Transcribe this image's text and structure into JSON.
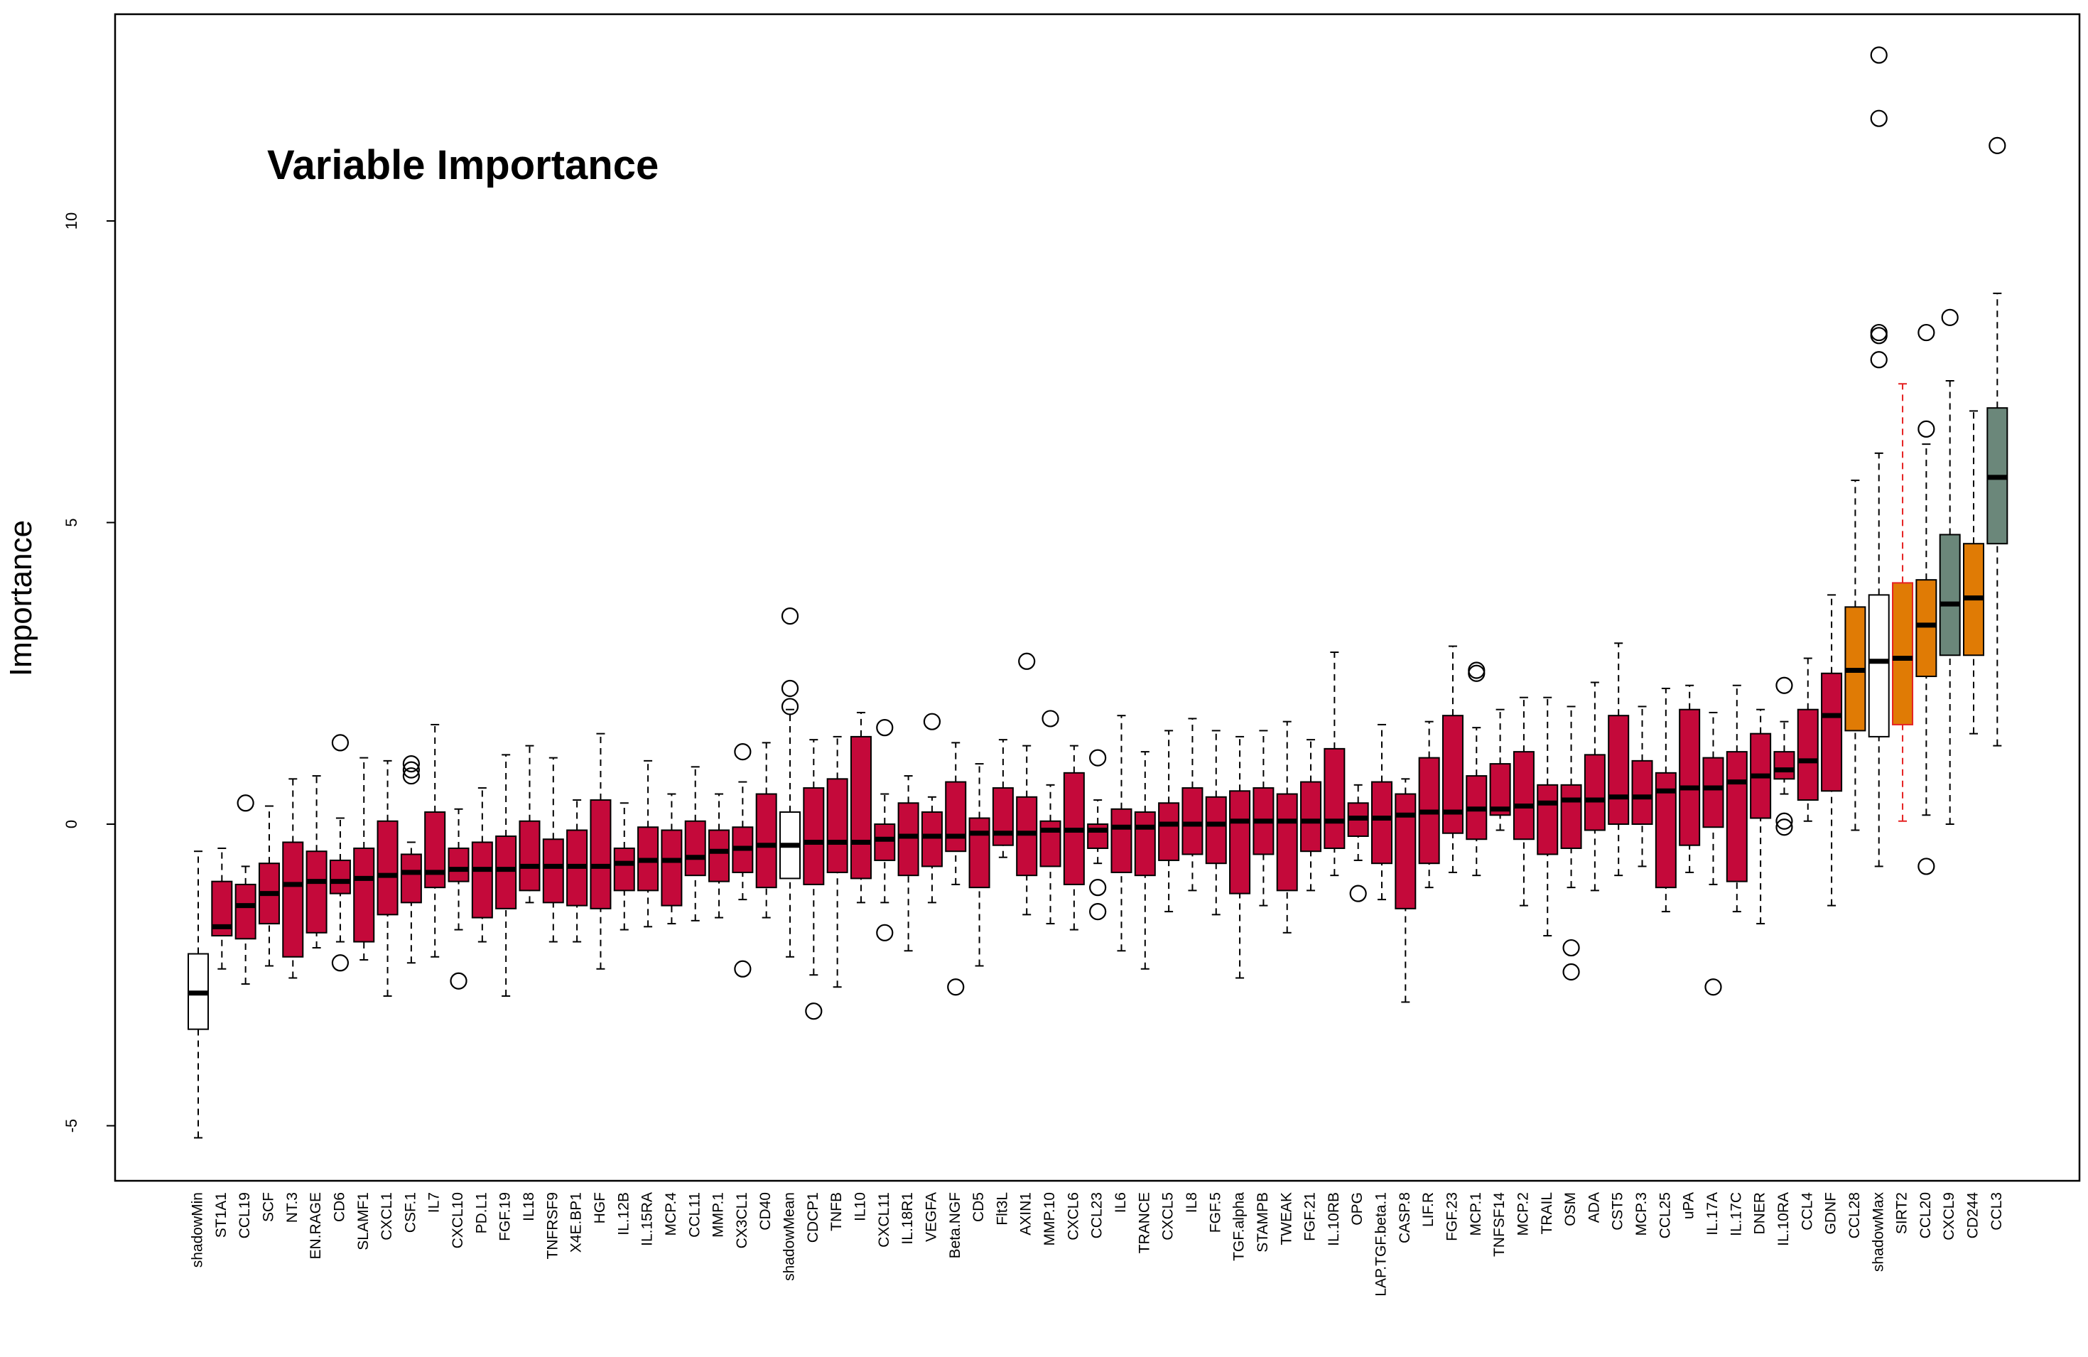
{
  "chart_data": {
    "type": "boxplot",
    "title": "Variable Importance",
    "xlabel": "",
    "ylabel": "Importance",
    "ylim": [
      -5.9,
      13.5
    ],
    "yticks": [
      -5,
      0,
      5,
      10
    ],
    "grid": false,
    "legend": "none",
    "colors": {
      "rejected": "#c4093a",
      "tentative": "#e07b05",
      "confirmed": "#6b877a",
      "shadow": "#ffffff",
      "highlight_label": "#e52222",
      "highlight_whisker": "#e52222"
    },
    "categories": [
      "shadowMin",
      "ST1A1",
      "CCL19",
      "SCF",
      "NT.3",
      "EN.RAGE",
      "CD6",
      "SLAMF1",
      "CXCL1",
      "CSF.1",
      "IL7",
      "CXCL10",
      "PD.L1",
      "FGF.19",
      "IL18",
      "TNFRSF9",
      "X4E.BP1",
      "HGF",
      "IL.12B",
      "IL.15RA",
      "MCP.4",
      "CCL11",
      "MMP.1",
      "CX3CL1",
      "CD40",
      "shadowMean",
      "CDCP1",
      "TNFB",
      "IL10",
      "CXCL11",
      "IL.18R1",
      "VEGFA",
      "Beta.NGF",
      "CD5",
      "Flt3L",
      "AXIN1",
      "MMP.10",
      "CXCL6",
      "CCL23",
      "IL6",
      "TRANCE",
      "CXCL5",
      "IL8",
      "FGF.5",
      "TGF.alpha",
      "STAMPB",
      "TWEAK",
      "FGF.21",
      "IL.10RB",
      "OPG",
      "LAP.TGF.beta.1",
      "CASP.8",
      "LIF.R",
      "FGF.23",
      "MCP.1",
      "TNFSF14",
      "MCP.2",
      "TRAIL",
      "OSM",
      "ADA",
      "CST5",
      "MCP.3",
      "CCL25",
      "uPA",
      "IL.17A",
      "IL.17C",
      "DNER",
      "IL.10RA",
      "CCL4",
      "GDNF",
      "CCL28",
      "shadowMax",
      "SIRT2",
      "CCL20",
      "CXCL9",
      "CD244",
      "CCL3"
    ],
    "groups": [
      "shadow",
      "rejected",
      "rejected",
      "rejected",
      "rejected",
      "rejected",
      "rejected",
      "rejected",
      "rejected",
      "rejected",
      "rejected",
      "rejected",
      "rejected",
      "rejected",
      "rejected",
      "rejected",
      "rejected",
      "rejected",
      "rejected",
      "rejected",
      "rejected",
      "rejected",
      "rejected",
      "rejected",
      "rejected",
      "shadow",
      "rejected",
      "rejected",
      "rejected",
      "rejected",
      "rejected",
      "rejected",
      "rejected",
      "rejected",
      "rejected",
      "rejected",
      "rejected",
      "rejected",
      "rejected",
      "rejected",
      "rejected",
      "rejected",
      "rejected",
      "rejected",
      "rejected",
      "rejected",
      "rejected",
      "rejected",
      "rejected",
      "rejected",
      "rejected",
      "rejected",
      "rejected",
      "rejected",
      "rejected",
      "rejected",
      "rejected",
      "rejected",
      "rejected",
      "rejected",
      "rejected",
      "rejected",
      "rejected",
      "rejected",
      "rejected",
      "rejected",
      "rejected",
      "rejected",
      "rejected",
      "rejected",
      "tentative",
      "shadow",
      "tentative",
      "tentative",
      "confirmed",
      "tentative",
      "confirmed"
    ],
    "highlight": "SIRT2",
    "boxes": [
      {
        "min": -5.2,
        "q1": -3.4,
        "median": -2.8,
        "q3": -2.15,
        "max": -0.45,
        "outliers": []
      },
      {
        "min": -2.4,
        "q1": -1.85,
        "median": -1.7,
        "q3": -0.95,
        "max": -0.4,
        "outliers": []
      },
      {
        "min": -2.65,
        "q1": -1.9,
        "median": -1.35,
        "q3": -1.0,
        "max": -0.7,
        "outliers": [
          0.35
        ]
      },
      {
        "min": -2.35,
        "q1": -1.65,
        "median": -1.15,
        "q3": -0.65,
        "max": 0.3,
        "outliers": []
      },
      {
        "min": -2.55,
        "q1": -2.2,
        "median": -1.0,
        "q3": -0.3,
        "max": 0.75,
        "outliers": []
      },
      {
        "min": -2.05,
        "q1": -1.8,
        "median": -0.95,
        "q3": -0.45,
        "max": 0.8,
        "outliers": []
      },
      {
        "min": -1.95,
        "q1": -1.15,
        "median": -0.95,
        "q3": -0.6,
        "max": 0.1,
        "outliers": [
          -2.3,
          1.35
        ]
      },
      {
        "min": -2.25,
        "q1": -1.95,
        "median": -0.9,
        "q3": -0.4,
        "max": 1.1,
        "outliers": []
      },
      {
        "min": -2.85,
        "q1": -1.5,
        "median": -0.85,
        "q3": 0.05,
        "max": 1.05,
        "outliers": []
      },
      {
        "min": -2.3,
        "q1": -1.3,
        "median": -0.8,
        "q3": -0.5,
        "max": -0.3,
        "outliers": [
          0.8,
          0.9,
          1.0
        ]
      },
      {
        "min": -2.2,
        "q1": -1.05,
        "median": -0.8,
        "q3": 0.2,
        "max": 1.65,
        "outliers": []
      },
      {
        "min": -1.75,
        "q1": -0.95,
        "median": -0.75,
        "q3": -0.4,
        "max": 0.25,
        "outliers": [
          -2.6
        ]
      },
      {
        "min": -1.95,
        "q1": -1.55,
        "median": -0.75,
        "q3": -0.3,
        "max": 0.6,
        "outliers": []
      },
      {
        "min": -2.85,
        "q1": -1.4,
        "median": -0.75,
        "q3": -0.2,
        "max": 1.15,
        "outliers": []
      },
      {
        "min": -1.3,
        "q1": -1.1,
        "median": -0.7,
        "q3": 0.05,
        "max": 1.3,
        "outliers": []
      },
      {
        "min": -1.95,
        "q1": -1.3,
        "median": -0.7,
        "q3": -0.25,
        "max": 1.1,
        "outliers": []
      },
      {
        "min": -1.95,
        "q1": -1.35,
        "median": -0.7,
        "q3": -0.1,
        "max": 0.4,
        "outliers": []
      },
      {
        "min": -2.4,
        "q1": -1.4,
        "median": -0.7,
        "q3": 0.4,
        "max": 1.5,
        "outliers": []
      },
      {
        "min": -1.75,
        "q1": -1.1,
        "median": -0.65,
        "q3": -0.4,
        "max": 0.35,
        "outliers": []
      },
      {
        "min": -1.7,
        "q1": -1.1,
        "median": -0.6,
        "q3": -0.05,
        "max": 1.05,
        "outliers": []
      },
      {
        "min": -1.65,
        "q1": -1.35,
        "median": -0.6,
        "q3": -0.1,
        "max": 0.5,
        "outliers": []
      },
      {
        "min": -1.6,
        "q1": -0.85,
        "median": -0.55,
        "q3": 0.05,
        "max": 0.95,
        "outliers": []
      },
      {
        "min": -1.55,
        "q1": -0.95,
        "median": -0.45,
        "q3": -0.1,
        "max": 0.5,
        "outliers": []
      },
      {
        "min": -1.25,
        "q1": -0.8,
        "median": -0.4,
        "q3": -0.05,
        "max": 0.7,
        "outliers": [
          -2.4,
          1.2
        ]
      },
      {
        "min": -1.55,
        "q1": -1.05,
        "median": -0.35,
        "q3": 0.5,
        "max": 1.35,
        "outliers": []
      },
      {
        "min": -2.2,
        "q1": -0.9,
        "median": -0.35,
        "q3": 0.2,
        "max": 1.9,
        "outliers": [
          1.95,
          2.25,
          3.45
        ]
      },
      {
        "min": -2.5,
        "q1": -1.0,
        "median": -0.3,
        "q3": 0.6,
        "max": 1.4,
        "outliers": [
          -3.1
        ]
      },
      {
        "min": -2.7,
        "q1": -0.8,
        "median": -0.3,
        "q3": 0.75,
        "max": 1.45,
        "outliers": []
      },
      {
        "min": -1.3,
        "q1": -0.9,
        "median": -0.3,
        "q3": 1.45,
        "max": 1.85,
        "outliers": []
      },
      {
        "min": -1.3,
        "q1": -0.6,
        "median": -0.25,
        "q3": 0.0,
        "max": 0.5,
        "outliers": [
          -1.8,
          1.6
        ]
      },
      {
        "min": -2.1,
        "q1": -0.85,
        "median": -0.2,
        "q3": 0.35,
        "max": 0.8,
        "outliers": []
      },
      {
        "min": -1.3,
        "q1": -0.7,
        "median": -0.2,
        "q3": 0.2,
        "max": 0.45,
        "outliers": [
          1.7
        ]
      },
      {
        "min": -1.0,
        "q1": -0.45,
        "median": -0.2,
        "q3": 0.7,
        "max": 1.35,
        "outliers": [
          -2.7
        ]
      },
      {
        "min": -2.35,
        "q1": -1.05,
        "median": -0.15,
        "q3": 0.1,
        "max": 1.0,
        "outliers": []
      },
      {
        "min": -0.55,
        "q1": -0.35,
        "median": -0.15,
        "q3": 0.6,
        "max": 1.4,
        "outliers": []
      },
      {
        "min": -1.5,
        "q1": -0.85,
        "median": -0.15,
        "q3": 0.45,
        "max": 1.3,
        "outliers": [
          2.7
        ]
      },
      {
        "min": -1.65,
        "q1": -0.7,
        "median": -0.1,
        "q3": 0.05,
        "max": 0.65,
        "outliers": [
          1.75
        ]
      },
      {
        "min": -1.75,
        "q1": -1.0,
        "median": -0.1,
        "q3": 0.85,
        "max": 1.3,
        "outliers": []
      },
      {
        "min": -0.65,
        "q1": -0.4,
        "median": -0.1,
        "q3": 0.0,
        "max": 0.4,
        "outliers": [
          -1.05,
          -1.45,
          1.1
        ]
      },
      {
        "min": -2.1,
        "q1": -0.8,
        "median": -0.05,
        "q3": 0.25,
        "max": 1.8,
        "outliers": []
      },
      {
        "min": -2.4,
        "q1": -0.85,
        "median": -0.05,
        "q3": 0.2,
        "max": 1.2,
        "outliers": []
      },
      {
        "min": -1.45,
        "q1": -0.6,
        "median": 0.0,
        "q3": 0.35,
        "max": 1.55,
        "outliers": []
      },
      {
        "min": -1.1,
        "q1": -0.5,
        "median": 0.0,
        "q3": 0.6,
        "max": 1.75,
        "outliers": []
      },
      {
        "min": -1.5,
        "q1": -0.65,
        "median": 0.0,
        "q3": 0.45,
        "max": 1.55,
        "outliers": []
      },
      {
        "min": -2.55,
        "q1": -1.15,
        "median": 0.05,
        "q3": 0.55,
        "max": 1.45,
        "outliers": []
      },
      {
        "min": -1.35,
        "q1": -0.5,
        "median": 0.05,
        "q3": 0.6,
        "max": 1.55,
        "outliers": []
      },
      {
        "min": -1.8,
        "q1": -1.1,
        "median": 0.05,
        "q3": 0.5,
        "max": 1.7,
        "outliers": []
      },
      {
        "min": -1.1,
        "q1": -0.45,
        "median": 0.05,
        "q3": 0.7,
        "max": 1.4,
        "outliers": []
      },
      {
        "min": -0.85,
        "q1": -0.4,
        "median": 0.05,
        "q3": 1.25,
        "max": 2.85,
        "outliers": []
      },
      {
        "min": -0.6,
        "q1": -0.2,
        "median": 0.1,
        "q3": 0.35,
        "max": 0.65,
        "outliers": [
          -1.15
        ]
      },
      {
        "min": -1.25,
        "q1": -0.65,
        "median": 0.1,
        "q3": 0.7,
        "max": 1.65,
        "outliers": []
      },
      {
        "min": -2.95,
        "q1": -1.4,
        "median": 0.15,
        "q3": 0.5,
        "max": 0.75,
        "outliers": []
      },
      {
        "min": -1.05,
        "q1": -0.65,
        "median": 0.2,
        "q3": 1.1,
        "max": 1.7,
        "outliers": []
      },
      {
        "min": -0.8,
        "q1": -0.15,
        "median": 0.2,
        "q3": 1.8,
        "max": 2.95,
        "outliers": []
      },
      {
        "min": -0.85,
        "q1": -0.25,
        "median": 0.25,
        "q3": 0.8,
        "max": 1.6,
        "outliers": [
          2.5,
          2.55
        ]
      },
      {
        "min": -0.1,
        "q1": 0.15,
        "median": 0.25,
        "q3": 1.0,
        "max": 1.9,
        "outliers": []
      },
      {
        "min": -1.35,
        "q1": -0.25,
        "median": 0.3,
        "q3": 1.2,
        "max": 2.1,
        "outliers": []
      },
      {
        "min": -1.85,
        "q1": -0.5,
        "median": 0.35,
        "q3": 0.65,
        "max": 2.1,
        "outliers": []
      },
      {
        "min": -1.05,
        "q1": -0.4,
        "median": 0.4,
        "q3": 0.65,
        "max": 1.95,
        "outliers": [
          -2.05,
          -2.45
        ]
      },
      {
        "min": -1.1,
        "q1": -0.1,
        "median": 0.4,
        "q3": 1.15,
        "max": 2.35,
        "outliers": []
      },
      {
        "min": -0.85,
        "q1": 0.0,
        "median": 0.45,
        "q3": 1.8,
        "max": 3.0,
        "outliers": []
      },
      {
        "min": -0.7,
        "q1": 0.0,
        "median": 0.45,
        "q3": 1.05,
        "max": 1.95,
        "outliers": []
      },
      {
        "min": -1.45,
        "q1": -1.05,
        "median": 0.55,
        "q3": 0.85,
        "max": 2.25,
        "outliers": []
      },
      {
        "min": -0.8,
        "q1": -0.35,
        "median": 0.6,
        "q3": 1.9,
        "max": 2.3,
        "outliers": []
      },
      {
        "min": -1.0,
        "q1": -0.05,
        "median": 0.6,
        "q3": 1.1,
        "max": 1.85,
        "outliers": [
          -2.7
        ]
      },
      {
        "min": -1.45,
        "q1": -0.95,
        "median": 0.7,
        "q3": 1.2,
        "max": 2.3,
        "outliers": []
      },
      {
        "min": -1.65,
        "q1": 0.1,
        "median": 0.8,
        "q3": 1.5,
        "max": 1.9,
        "outliers": []
      },
      {
        "min": 0.5,
        "q1": 0.75,
        "median": 0.9,
        "q3": 1.2,
        "max": 1.7,
        "outliers": [
          -0.05,
          0.05,
          2.3
        ]
      },
      {
        "min": 0.05,
        "q1": 0.4,
        "median": 1.05,
        "q3": 1.9,
        "max": 2.75,
        "outliers": []
      },
      {
        "min": -1.35,
        "q1": 0.55,
        "median": 1.8,
        "q3": 2.5,
        "max": 3.8,
        "outliers": []
      },
      {
        "min": -0.1,
        "q1": 1.55,
        "median": 2.55,
        "q3": 3.6,
        "max": 5.7,
        "outliers": []
      },
      {
        "min": -0.7,
        "q1": 1.45,
        "median": 2.7,
        "q3": 3.8,
        "max": 6.15,
        "outliers": [
          7.7,
          8.1,
          8.15,
          11.7,
          12.75
        ]
      },
      {
        "min": 0.05,
        "q1": 1.65,
        "median": 2.75,
        "q3": 4.0,
        "max": 7.3,
        "outliers": []
      },
      {
        "min": 0.15,
        "q1": 2.45,
        "median": 3.3,
        "q3": 4.05,
        "max": 6.3,
        "outliers": [
          -0.7,
          6.55,
          8.15
        ]
      },
      {
        "min": 0.0,
        "q1": 2.8,
        "median": 3.65,
        "q3": 4.8,
        "max": 7.35,
        "outliers": [
          8.4
        ]
      },
      {
        "min": 1.5,
        "q1": 2.8,
        "median": 3.75,
        "q3": 4.65,
        "max": 6.85,
        "outliers": []
      },
      {
        "min": 1.3,
        "q1": 4.65,
        "median": 5.75,
        "q3": 6.9,
        "max": 8.8,
        "outliers": [
          11.25
        ]
      }
    ]
  }
}
